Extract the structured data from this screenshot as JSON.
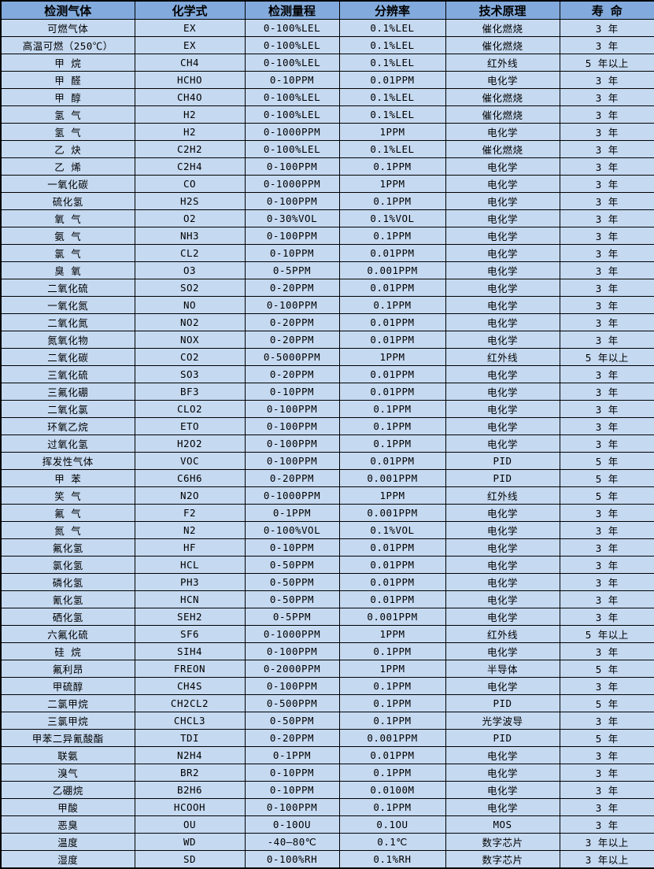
{
  "table": {
    "colors": {
      "header_bg": "#82aadc",
      "row_bg": "#c5d9f1",
      "border": "#000000",
      "text": "#000000"
    },
    "columns": [
      "检测气体",
      "化学式",
      "检测量程",
      "分辨率",
      "技术原理",
      "寿 命"
    ],
    "rows": [
      [
        "可燃气体",
        "EX",
        "0-100%LEL",
        "0.1%LEL",
        "催化燃烧",
        "3 年"
      ],
      [
        "高温可燃（250℃）",
        "EX",
        "0-100%LEL",
        "0.1%LEL",
        "催化燃烧",
        "3 年"
      ],
      [
        "甲 烷",
        "CH4",
        "0-100%LEL",
        "0.1%LEL",
        "红外线",
        "5 年以上"
      ],
      [
        "甲 醛",
        "HCHO",
        "0-10PPM",
        "0.01PPM",
        "电化学",
        "3 年"
      ],
      [
        "甲 醇",
        "CH4O",
        "0-100%LEL",
        "0.1%LEL",
        "催化燃烧",
        "3 年"
      ],
      [
        "氢 气",
        "H2",
        "0-100%LEL",
        "0.1%LEL",
        "催化燃烧",
        "3 年"
      ],
      [
        "氢 气",
        "H2",
        "0-1000PPM",
        "1PPM",
        "电化学",
        "3 年"
      ],
      [
        "乙 炔",
        "C2H2",
        "0-100%LEL",
        "0.1%LEL",
        "催化燃烧",
        "3 年"
      ],
      [
        "乙 烯",
        "C2H4",
        "0-100PPM",
        "0.1PPM",
        "电化学",
        "3 年"
      ],
      [
        "一氧化碳",
        "CO",
        "0-1000PPM",
        "1PPM",
        "电化学",
        "3 年"
      ],
      [
        "硫化氢",
        "H2S",
        "0-100PPM",
        "0.1PPM",
        "电化学",
        "3 年"
      ],
      [
        "氧 气",
        "O2",
        "0-30%VOL",
        "0.1%VOL",
        "电化学",
        "3 年"
      ],
      [
        "氨 气",
        "NH3",
        "0-100PPM",
        "0.1PPM",
        "电化学",
        "3 年"
      ],
      [
        "氯 气",
        "CL2",
        "0-10PPM",
        "0.01PPM",
        "电化学",
        "3 年"
      ],
      [
        "臭 氧",
        "O3",
        "0-5PPM",
        "0.001PPM",
        "电化学",
        "3 年"
      ],
      [
        "二氧化硫",
        "SO2",
        "0-20PPM",
        "0.01PPM",
        "电化学",
        "3 年"
      ],
      [
        "一氧化氮",
        "NO",
        "0-100PPM",
        "0.1PPM",
        "电化学",
        "3 年"
      ],
      [
        "二氧化氮",
        "NO2",
        "0-20PPM",
        "0.01PPM",
        "电化学",
        "3 年"
      ],
      [
        "氮氧化物",
        "NOX",
        "0-20PPM",
        "0.01PPM",
        "电化学",
        "3 年"
      ],
      [
        "二氧化碳",
        "CO2",
        "0-5000PPM",
        "1PPM",
        "红外线",
        "5 年以上"
      ],
      [
        "三氧化硫",
        "SO3",
        "0-20PPM",
        "0.01PPM",
        "电化学",
        "3 年"
      ],
      [
        "三氟化硼",
        "BF3",
        "0-10PPM",
        "0.01PPM",
        "电化学",
        "3 年"
      ],
      [
        "二氧化氯",
        "CLO2",
        "0-100PPM",
        "0.1PPM",
        "电化学",
        "3 年"
      ],
      [
        "环氧乙烷",
        "ETO",
        "0-100PPM",
        "0.1PPM",
        "电化学",
        "3 年"
      ],
      [
        "过氧化氢",
        "H2O2",
        "0-100PPM",
        "0.1PPM",
        "电化学",
        "3 年"
      ],
      [
        "挥发性气体",
        "VOC",
        "0-100PPM",
        "0.01PPM",
        "PID",
        "5 年"
      ],
      [
        "甲 苯",
        "C6H6",
        "0-20PPM",
        "0.001PPM",
        "PID",
        "5 年"
      ],
      [
        "笑 气",
        "N2O",
        "0-1000PPM",
        "1PPM",
        "红外线",
        "5 年"
      ],
      [
        "氟 气",
        "F2",
        "0-1PPM",
        "0.001PPM",
        "电化学",
        "3 年"
      ],
      [
        "氮 气",
        "N2",
        "0-100%VOL",
        "0.1%VOL",
        "电化学",
        "3 年"
      ],
      [
        "氟化氢",
        "HF",
        "0-10PPM",
        "0.01PPM",
        "电化学",
        "3 年"
      ],
      [
        "氯化氢",
        "HCL",
        "0-50PPM",
        "0.01PPM",
        "电化学",
        "3 年"
      ],
      [
        "磷化氢",
        "PH3",
        "0-50PPM",
        "0.01PPM",
        "电化学",
        "3 年"
      ],
      [
        "氰化氢",
        "HCN",
        "0-50PPM",
        "0.01PPM",
        "电化学",
        "3 年"
      ],
      [
        "硒化氢",
        "SEH2",
        "0-5PPM",
        "0.001PPM",
        "电化学",
        "3 年"
      ],
      [
        "六氟化硫",
        "SF6",
        "0-1000PPM",
        "1PPM",
        "红外线",
        "5 年以上"
      ],
      [
        "硅 烷",
        "SIH4",
        "0-100PPM",
        "0.1PPM",
        "电化学",
        "3 年"
      ],
      [
        "氟利昂",
        "FREON",
        "0-2000PPM",
        "1PPM",
        "半导体",
        "5 年"
      ],
      [
        "甲硫醇",
        "CH4S",
        "0-100PPM",
        "0.1PPM",
        "电化学",
        "3 年"
      ],
      [
        "二氯甲烷",
        "CH2CL2",
        "0-500PPM",
        "0.1PPM",
        "PID",
        "5 年"
      ],
      [
        "三氯甲烷",
        "CHCL3",
        "0-50PPM",
        "0.1PPM",
        "光学波导",
        "3 年"
      ],
      [
        "甲苯二异氰酸酯",
        "TDI",
        "0-20PPM",
        "0.001PPM",
        "PID",
        "5 年"
      ],
      [
        "联氨",
        "N2H4",
        "0-1PPM",
        "0.01PPM",
        "电化学",
        "3 年"
      ],
      [
        "溴气",
        "BR2",
        "0-10PPM",
        "0.1PPM",
        "电化学",
        "3 年"
      ],
      [
        "乙硼烷",
        "B2H6",
        "0-10PPM",
        "0.0100M",
        "电化学",
        "3 年"
      ],
      [
        "甲酸",
        "HCOOH",
        "0-100PPM",
        "0.1PPM",
        "电化学",
        "3 年"
      ],
      [
        "恶臭",
        "OU",
        "0-10OU",
        "0.1OU",
        "MOS",
        "3 年"
      ],
      [
        "温度",
        "WD",
        "-40—80℃",
        "0.1℃",
        "数字芯片",
        "3 年以上"
      ],
      [
        "湿度",
        "SD",
        "0-100%RH",
        "0.1%RH",
        "数字芯片",
        "3 年以上"
      ]
    ],
    "column_keys": [
      "gas",
      "formula",
      "range",
      "resolution",
      "principle",
      "life"
    ]
  }
}
